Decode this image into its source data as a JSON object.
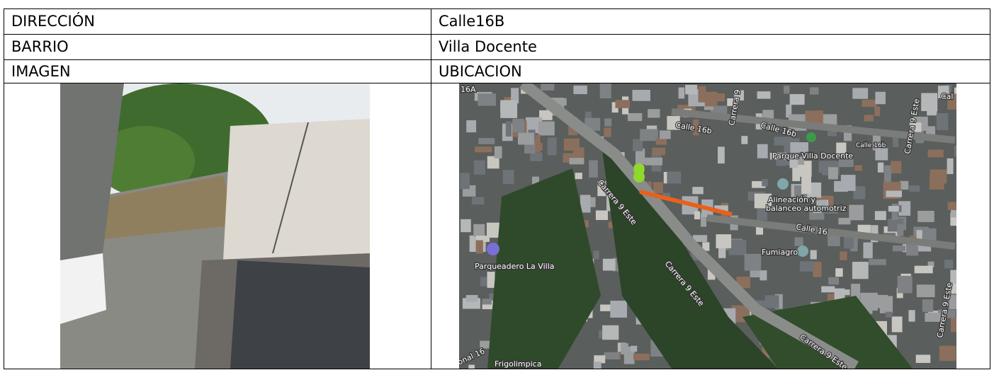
{
  "table": {
    "rows": [
      [
        "DIRECCIÓN",
        "Calle16B"
      ],
      [
        "BARRIO",
        "Villa Docente"
      ],
      [
        "IMAGEN",
        "UBICACION"
      ]
    ]
  },
  "map": {
    "labels": [
      "16A",
      "Calle 16b",
      "Calle 16b",
      "Calle 16b",
      "Parque Villa Docente",
      "Carrera 9 Este",
      "Carrera 9 Este",
      "Alineación y",
      "balanceo automotriz",
      "Calle 16",
      "Fumiagro",
      "Parqueadero La Villa",
      "Frigolimpica",
      "Carrera 9 Este",
      "Carrera 9",
      "Carrera 9 Este",
      "Carrera 9 Este",
      "Cal",
      "onal 16"
    ]
  }
}
